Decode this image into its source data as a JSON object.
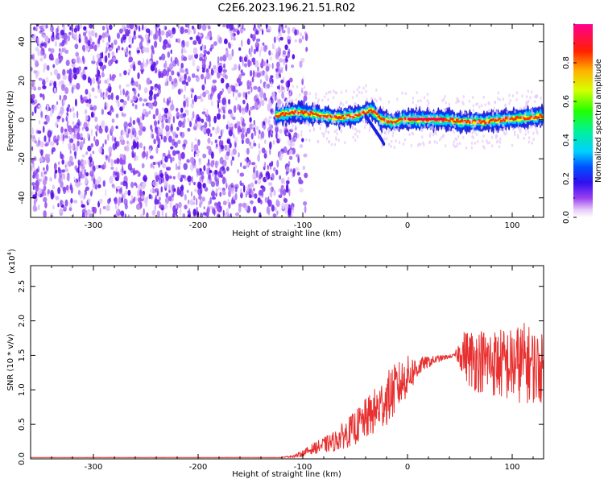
{
  "title": "C2E6.2023.196.21.51.R02",
  "chart_data": [
    {
      "type": "heatmap",
      "xlabel": "Height of straight line (km)",
      "ylabel": "Frequency (Hz)",
      "xlim": [
        -360,
        130
      ],
      "ylim": [
        -50,
        49
      ],
      "xticks": [
        -300,
        -200,
        -100,
        0,
        100
      ],
      "yticks": [
        -40,
        -20,
        0,
        20,
        40
      ],
      "grid": false,
      "noise_region_x": [
        -360,
        -108
      ],
      "echo_trace": {
        "x": [
          -125,
          -110,
          -90,
          -70,
          -50,
          -40,
          -35,
          -30,
          -25,
          -15,
          -5,
          0,
          20,
          40,
          50,
          60,
          75,
          90,
          110,
          130
        ],
        "frequency": [
          2,
          4,
          3,
          1,
          2,
          4,
          5,
          3,
          0,
          -1,
          0,
          0,
          0,
          0,
          -1,
          -1,
          -1,
          0,
          1,
          2
        ]
      },
      "echo_branch": {
        "x": [
          -40,
          -35,
          -30,
          -25,
          -22
        ],
        "frequency": [
          2,
          -2,
          -6,
          -10,
          -13
        ]
      },
      "colorbar": {
        "label": "Normalized spectral amplitude",
        "range": [
          0,
          1
        ],
        "ticks": [
          0.0,
          0.2,
          0.4,
          0.6,
          0.8
        ]
      }
    },
    {
      "type": "line",
      "xlabel": "Height of straight line (km)",
      "ylabel": "SNR (10 * v/v)",
      "scale_label": "(x10",
      "scale_exponent": "4",
      "scale_close": ")",
      "xlim": [
        -360,
        130
      ],
      "ylim": [
        0,
        2.8
      ],
      "xticks": [
        -300,
        -200,
        -100,
        0,
        100
      ],
      "yticks": [
        0.0,
        0.5,
        1.0,
        1.5,
        2.0,
        2.5
      ],
      "grid": false,
      "color": "#e83030",
      "profile": {
        "x": [
          -360,
          -120,
          -105,
          -90,
          -70,
          -50,
          -30,
          -15,
          0,
          15,
          30,
          45,
          52,
          60,
          80,
          100,
          110,
          130
        ],
        "mean": [
          0.02,
          0.02,
          0.05,
          0.15,
          0.25,
          0.45,
          0.7,
          0.95,
          1.2,
          1.38,
          1.45,
          1.5,
          1.55,
          1.45,
          1.4,
          1.35,
          1.4,
          1.3
        ],
        "spread": [
          0.002,
          0.002,
          0.03,
          0.08,
          0.15,
          0.25,
          0.35,
          0.4,
          0.3,
          0.1,
          0.05,
          0.02,
          0.3,
          0.45,
          0.5,
          0.55,
          0.6,
          0.5
        ]
      }
    }
  ]
}
